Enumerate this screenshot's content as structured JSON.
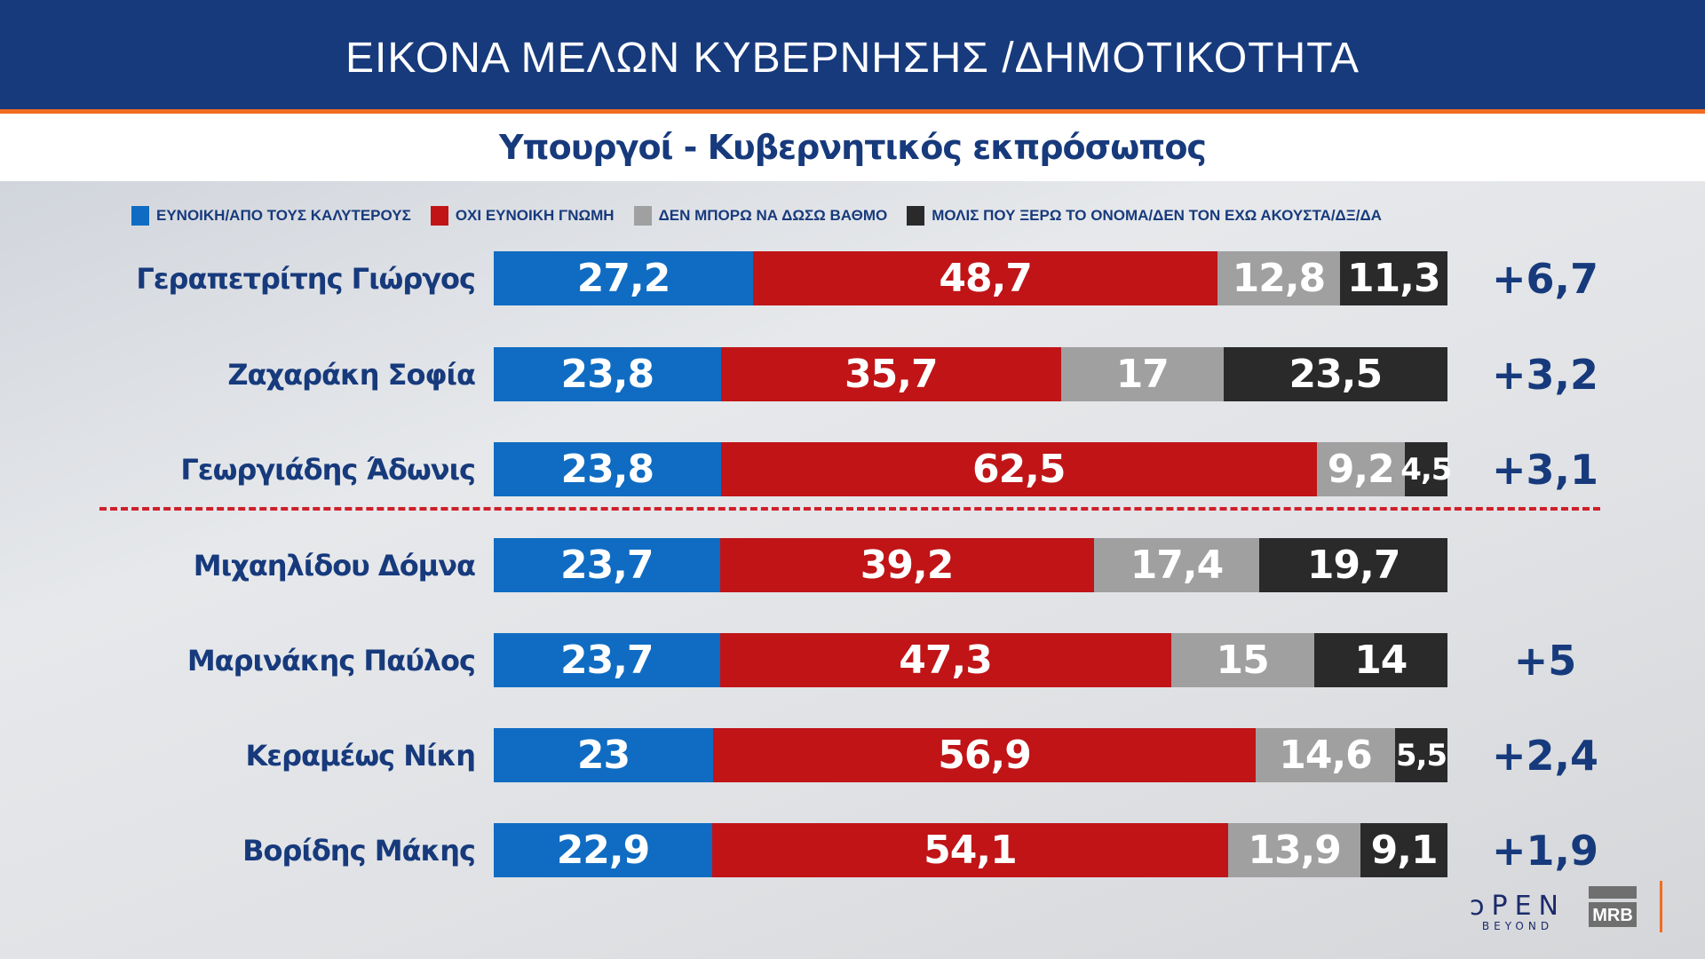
{
  "header": {
    "title": "ΕΙΚΟΝΑ ΜΕΛΩΝ ΚΥΒΕΡΝΗΣΗΣ /ΔΗΜΟΤΙΚΟΤΗΤΑ",
    "subtitle": "Υπουργοί - Κυβερνητικός εκπρόσωπος"
  },
  "logos": {
    "channel": "OPEN",
    "channel_sub": "BEYOND",
    "pollster": "MRB"
  },
  "chart_data": {
    "type": "bar",
    "stacked": true,
    "orientation": "horizontal",
    "title": "Υπουργοί - Κυβερνητικός εκπρόσωπος",
    "legend_position": "top",
    "categories": [
      "Γεραπετρίτης Γιώργος",
      "Ζαχαράκη Σοφία",
      "Γεωργιάδης Άδωνις",
      "Μιχαηλίδου Δόμνα",
      "Μαρινάκης Παύλος",
      "Κεραμέως Νίκη",
      "Βορίδης Μάκης"
    ],
    "series": [
      {
        "name": "ΕΥΝΟΙΚΗ/ΑΠΟ ΤΟΥΣ ΚΑΛΥΤΕΡΟΥΣ",
        "color": "#0f6cc2",
        "values": [
          "27,2",
          "23,8",
          "23,8",
          "23,7",
          "23,7",
          "23",
          "22,9"
        ]
      },
      {
        "name": "ΟΧΙ ΕΥΝΟΙΚΗ ΓΝΩΜΗ",
        "color": "#c01417",
        "values": [
          "48,7",
          "35,7",
          "62,5",
          "39,2",
          "47,3",
          "56,9",
          "54,1"
        ]
      },
      {
        "name": "ΔΕΝ ΜΠΟΡΩ ΝΑ ΔΩΣΩ ΒΑΘΜΟ",
        "color": "#a0a0a0",
        "values": [
          "12,8",
          "17",
          "9,2",
          "17,4",
          "15",
          "14,6",
          "13,9"
        ]
      },
      {
        "name": "ΜΟΛΙΣ ΠΟΥ ΞΕΡΩ ΤΟ ΟΝΟΜΑ/ΔΕΝ ΤΟΝ ΕΧΩ ΑΚΟΥΣΤΑ/ΔΞ/ΔΑ",
        "color": "#2a2a2a",
        "values": [
          "11,3",
          "23,5",
          "4,5",
          "19,7",
          "14",
          "5,5",
          "9,1"
        ]
      }
    ],
    "changes": [
      "+6,7",
      "+3,2",
      "+3,1",
      "",
      "+5",
      "+2,4",
      "+1,9"
    ],
    "separator_after_index": 2
  }
}
